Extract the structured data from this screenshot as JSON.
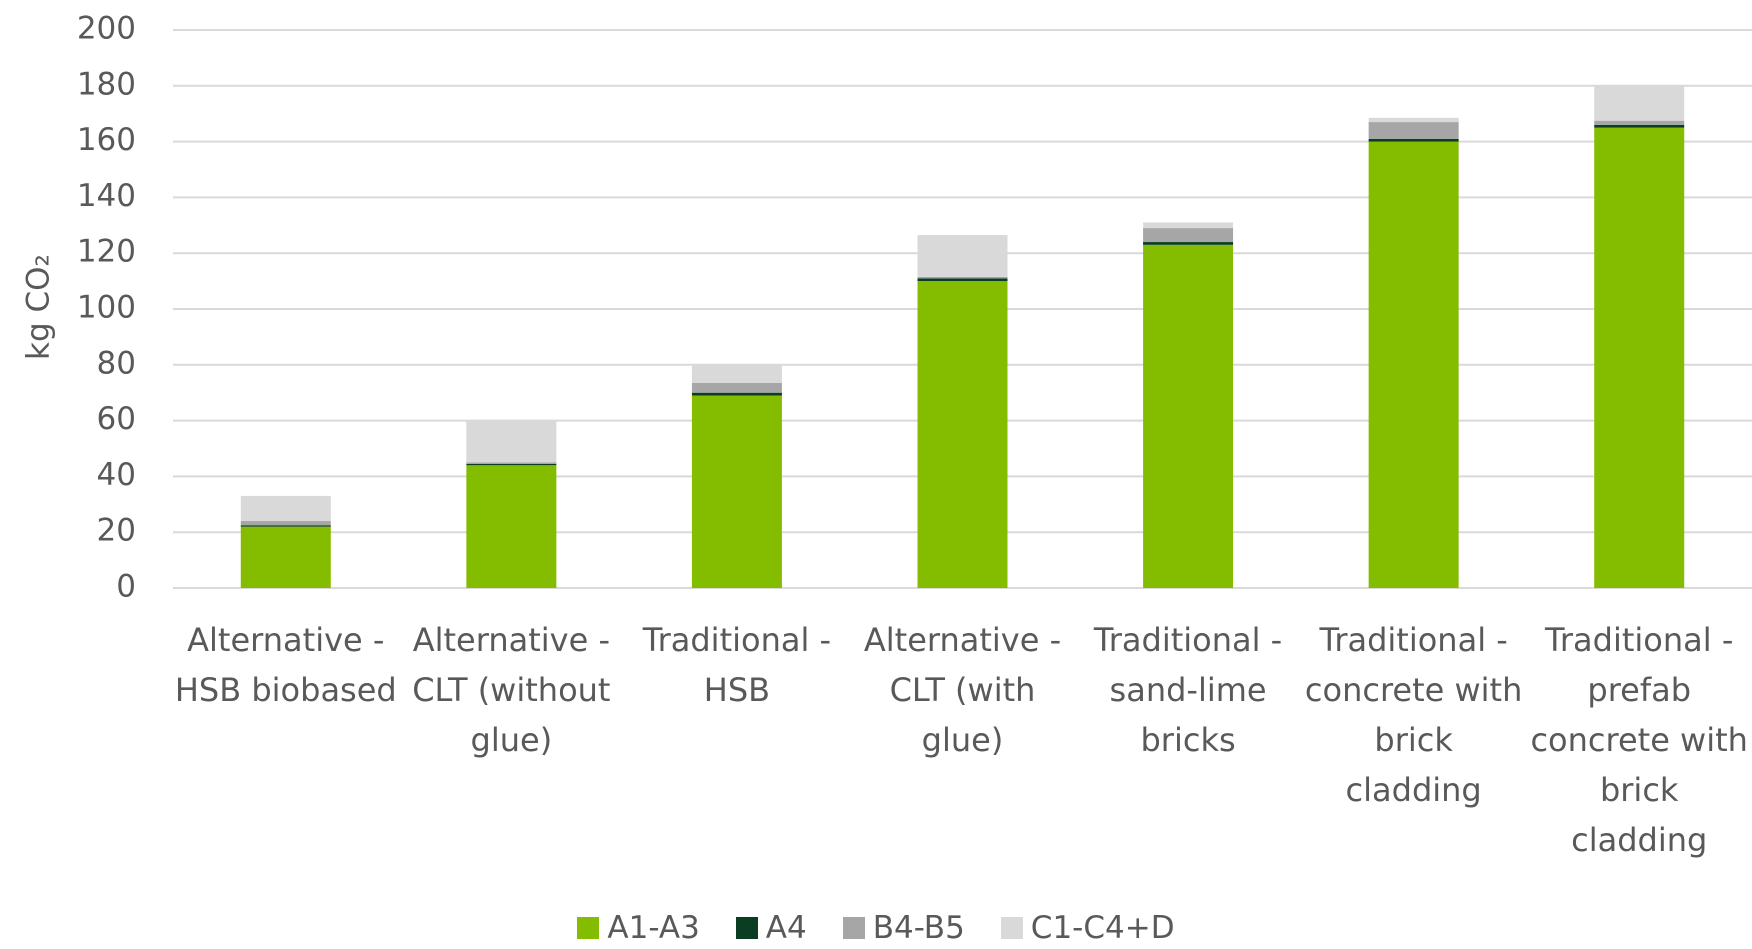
{
  "chart_data": {
    "type": "stacked_bar",
    "y_label": "kg CO₂",
    "categories": [
      "Alternative - HSB biobased",
      "Alternative - CLT (without glue)",
      "Traditional - HSB",
      "Alternative - CLT (with glue)",
      "Traditional - sand-lime bricks",
      "Traditional - concrete with brick cladding",
      "Traditional - prefab concrete with brick cladding"
    ],
    "series": [
      {
        "name": "A1-A3",
        "color": "#84bd00",
        "values": [
          22,
          44,
          69,
          110,
          123,
          160,
          165
        ]
      },
      {
        "name": "A4",
        "color": "#0a3d22",
        "values": [
          0.5,
          0.5,
          1,
          1,
          1,
          1,
          1
        ]
      },
      {
        "name": "B4-B5",
        "color": "#a6a6a6",
        "values": [
          1.5,
          0.5,
          3.5,
          0.5,
          5,
          6,
          1.5
        ]
      },
      {
        "name": "C1-C4+D",
        "color": "#d9d9d9",
        "values": [
          9,
          15,
          6.5,
          15,
          2,
          1.5,
          12.5
        ]
      }
    ],
    "ylim": [
      0,
      200
    ],
    "yticks": [
      0,
      20,
      40,
      60,
      80,
      100,
      120,
      140,
      160,
      180,
      200
    ],
    "grid": true,
    "legend": "bottom"
  }
}
